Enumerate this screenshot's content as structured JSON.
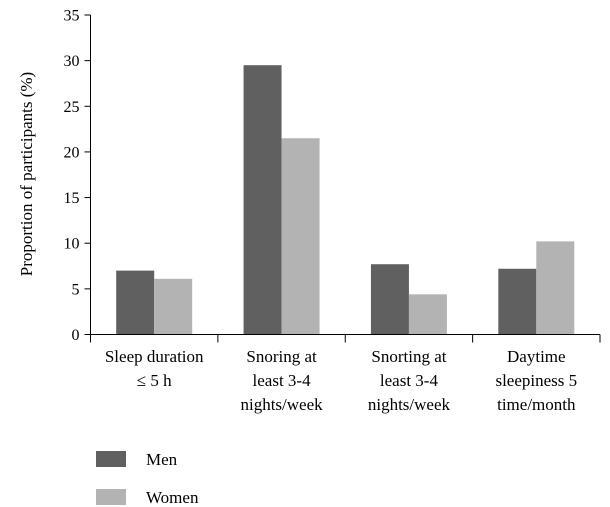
{
  "chart_data": {
    "type": "bar",
    "categories": [
      [
        "Sleep duration",
        "≤ 5 h"
      ],
      [
        "Snoring at",
        "least 3-4",
        "nights/week"
      ],
      [
        "Snorting at",
        "least 3-4",
        "nights/week"
      ],
      [
        "Daytime",
        "sleepiness 5",
        "time/month"
      ]
    ],
    "series": [
      {
        "name": "Men",
        "values": [
          7.0,
          29.5,
          7.7,
          7.2
        ],
        "color": "#606060"
      },
      {
        "name": "Women",
        "values": [
          6.1,
          21.5,
          4.4,
          10.2
        ],
        "color": "#b3b3b3"
      }
    ],
    "ylabel": "Proportion of participants (%)",
    "xlabel": "",
    "ylim": [
      0,
      35
    ],
    "yticks": [
      0,
      5,
      10,
      15,
      20,
      25,
      30,
      35
    ],
    "grid": false,
    "legend_position": "bottom-left"
  }
}
